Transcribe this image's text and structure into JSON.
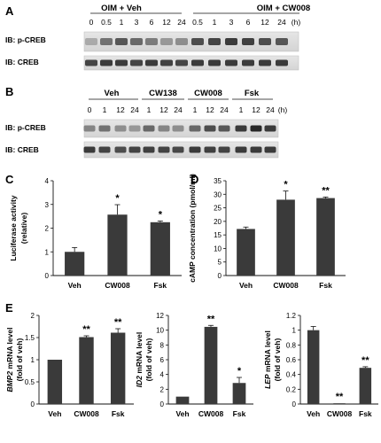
{
  "panels": {
    "A": {
      "label": "A",
      "groups": [
        "OIM + Veh",
        "OIM + CW008"
      ],
      "timepoints": [
        "0",
        "0.5",
        "1",
        "3",
        "6",
        "12",
        "24",
        "0.5",
        "1",
        "3",
        "6",
        "12",
        "24",
        "(h)"
      ],
      "rows": [
        "IB: p-CREB",
        "IB: CREB"
      ]
    },
    "B": {
      "label": "B",
      "groups": [
        "Veh",
        "CW138",
        "CW008",
        "Fsk"
      ],
      "timepoints": [
        "0",
        "1",
        "12",
        "24",
        "1",
        "12",
        "24",
        "1",
        "12",
        "24",
        "1",
        "12",
        "24",
        "(h)"
      ],
      "rows": [
        "IB: p-CREB",
        "IB: CREB"
      ]
    },
    "C": {
      "label": "C"
    },
    "D": {
      "label": "D"
    },
    "E": {
      "label": "E"
    }
  },
  "chart_data": [
    {
      "id": "C",
      "type": "bar",
      "categories": [
        "Veh",
        "CW008",
        "Fsk"
      ],
      "values": [
        1.0,
        2.57,
        2.25
      ],
      "errors": [
        0.18,
        0.42,
        0.05
      ],
      "significance": [
        "",
        "*",
        "*"
      ],
      "ylabel": "Luciferase activity",
      "ylabel2": "(relative)",
      "ylim": [
        0,
        4
      ],
      "yticks": [
        "0",
        "1",
        "2",
        "3",
        "4"
      ],
      "color": "#3a3a3a"
    },
    {
      "id": "D",
      "type": "bar",
      "categories": [
        "Veh",
        "CW008",
        "Fsk"
      ],
      "values": [
        17.2,
        28.0,
        28.6
      ],
      "errors": [
        0.7,
        3.2,
        0.4
      ],
      "significance": [
        "",
        "*",
        "**"
      ],
      "ylabel": "cAMP concentration  (pmol/ml)",
      "ylabel2": "",
      "ylim": [
        0,
        35
      ],
      "yticks": [
        "0",
        "5",
        "10",
        "15",
        "20",
        "25",
        "30",
        "35"
      ],
      "color": "#3a3a3a"
    },
    {
      "id": "E1",
      "type": "bar",
      "categories": [
        "Veh",
        "CW008",
        "Fsk"
      ],
      "values": [
        1.0,
        1.51,
        1.61
      ],
      "errors": [
        0.0,
        0.03,
        0.09
      ],
      "significance": [
        "",
        "**",
        "**"
      ],
      "ylabel": "BMP2 mRNA level",
      "ylabel2": "(fold of veh)",
      "ylim": [
        0,
        2
      ],
      "yticks": [
        "0",
        "0.5",
        "1",
        "1.5",
        "2"
      ],
      "color": "#3a3a3a"
    },
    {
      "id": "E2",
      "type": "bar",
      "categories": [
        "Veh",
        "CW008",
        "Fsk"
      ],
      "values": [
        1.0,
        10.45,
        2.85
      ],
      "errors": [
        0.0,
        0.2,
        0.75
      ],
      "significance": [
        "",
        "**",
        "*"
      ],
      "ylabel": "ID2 mRNA level",
      "ylabel2": "(fold of veh)",
      "ylim": [
        0,
        12
      ],
      "yticks": [
        "0",
        "2",
        "4",
        "6",
        "8",
        "10",
        "12"
      ],
      "color": "#3a3a3a"
    },
    {
      "id": "E3",
      "type": "bar",
      "categories": [
        "Veh",
        "CW008",
        "Fsk"
      ],
      "values": [
        1.0,
        0.01,
        0.49
      ],
      "errors": [
        0.05,
        0.0,
        0.015
      ],
      "significance": [
        "",
        "**",
        "**"
      ],
      "ylabel": "LEP mRNA level",
      "ylabel2": "(fold of veh)",
      "ylim": [
        0,
        1.2
      ],
      "yticks": [
        "0",
        "0.2",
        "0.4",
        "0.6",
        "0.8",
        "1",
        "1.2"
      ],
      "color": "#3a3a3a"
    }
  ]
}
